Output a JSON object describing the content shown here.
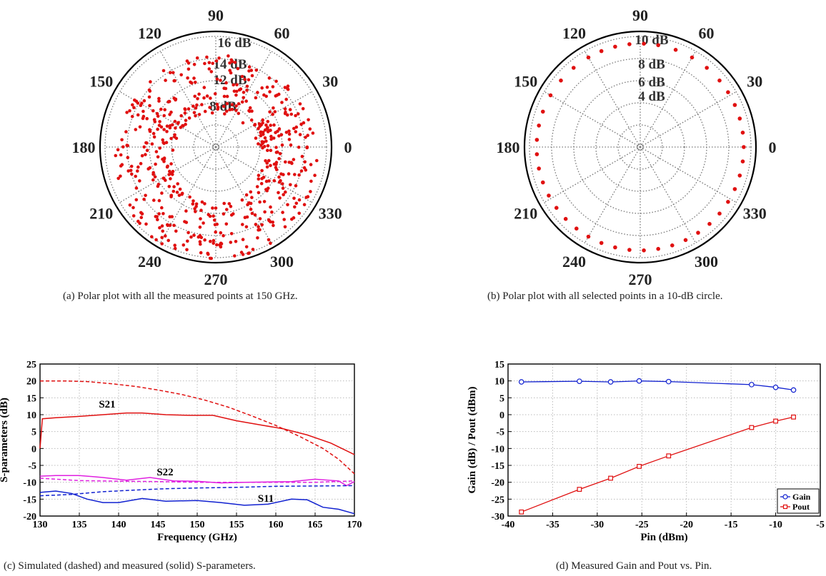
{
  "captions": {
    "a": "(a) Polar plot with all the measured points at 150 GHz.",
    "b": "(b) Polar plot with all selected points in a 10-dB circle.",
    "c": "(c) Simulated (dashed) and measured (solid) S-parameters.",
    "d": "(d) Measured Gain and Pout vs. Pin."
  },
  "colors": {
    "points": "#e01010",
    "s21": "#e01010",
    "s22": "#e020e0",
    "s11": "#1020d0",
    "gain": "#1020d0",
    "pout": "#e01010"
  },
  "chart_data": [
    {
      "type": "scatter",
      "coordinate_system": "polar",
      "angle_labels": [
        "0",
        "30",
        "60",
        "90",
        "120",
        "150",
        "180",
        "210",
        "240",
        "270",
        "300",
        "330"
      ],
      "ring_labels": [
        "8 dB",
        "12 dB",
        "14 dB",
        "16 dB"
      ],
      "r_range": [
        0,
        18
      ],
      "grid": true,
      "rings_r": [
        6,
        10,
        13,
        16
      ],
      "ring_label_values": [
        8,
        12,
        14,
        16
      ],
      "points_note": "many measured points distributed between radius ~6 and ~17"
    },
    {
      "type": "scatter",
      "coordinate_system": "polar",
      "angle_labels": [
        "0",
        "30",
        "60",
        "90",
        "120",
        "150",
        "180",
        "210",
        "240",
        "270",
        "300",
        "330"
      ],
      "ring_labels": [
        "10 dB",
        "8 dB",
        "6 dB",
        "4 dB"
      ],
      "r_range": [
        0,
        10
      ],
      "grid": true,
      "ring_label_values": [
        10,
        8,
        6,
        4
      ],
      "points_r": 10,
      "points_angles": [
        0,
        8,
        16,
        24,
        32,
        40,
        50,
        60,
        70,
        80,
        88,
        96,
        104,
        112,
        120,
        130,
        140,
        150,
        160,
        168,
        176,
        184,
        192,
        200,
        208,
        216,
        224,
        232,
        240,
        248,
        256,
        264,
        272,
        280,
        288,
        296,
        304,
        312,
        320,
        328,
        336,
        344,
        352
      ]
    },
    {
      "type": "line",
      "xlabel": "Frequency (GHz)",
      "ylabel": "S-parameters (dB)",
      "xlim": [
        130,
        170
      ],
      "ylim": [
        -20,
        25
      ],
      "xticks": [
        "130",
        "135",
        "140",
        "145",
        "150",
        "155",
        "160",
        "165",
        "170"
      ],
      "yticks": [
        "-20",
        "-15",
        "-10",
        "-5",
        "0",
        "5",
        "10",
        "15",
        "20",
        "25"
      ],
      "grid": true,
      "annotations": [
        "S21",
        "S22",
        "S11"
      ],
      "series": [
        {
          "name": "S21",
          "style": "solid",
          "x": [
            130,
            130.3,
            132,
            135,
            138,
            141,
            143,
            146,
            149,
            152,
            155,
            158,
            161,
            164,
            167,
            170
          ],
          "values": [
            0,
            8.8,
            9.1,
            9.5,
            10,
            10.5,
            10.5,
            10,
            9.8,
            9.8,
            8.2,
            7,
            5.8,
            4,
            1.6,
            -1.8
          ]
        },
        {
          "name": "S21",
          "style": "dashed",
          "x": [
            130,
            133,
            136,
            139,
            142,
            145,
            148,
            151,
            154,
            157,
            160,
            163,
            166,
            168,
            170
          ],
          "values": [
            20,
            20,
            19.8,
            19.2,
            18.4,
            17.3,
            16,
            14.3,
            12.2,
            9.6,
            6.8,
            3.6,
            0,
            -3.2,
            -7.5
          ]
        },
        {
          "name": "S22",
          "style": "solid",
          "x": [
            130,
            132,
            135,
            138,
            141,
            144,
            147,
            150,
            153,
            156,
            159,
            162,
            165,
            168,
            169,
            170
          ],
          "values": [
            -8.2,
            -8,
            -8,
            -8.6,
            -9.4,
            -8.6,
            -9.6,
            -9.7,
            -10.2,
            -10,
            -9.9,
            -9.8,
            -9.1,
            -9.6,
            -11,
            -9.8
          ]
        },
        {
          "name": "S22",
          "style": "dashed",
          "x": [
            130,
            135,
            140,
            145,
            150,
            155,
            160,
            165,
            170
          ],
          "values": [
            -8.8,
            -9.5,
            -9.7,
            -9.8,
            -10,
            -10,
            -10,
            -10,
            -9.6
          ]
        },
        {
          "name": "S11",
          "style": "solid",
          "x": [
            130,
            132,
            134,
            136,
            138,
            140,
            143,
            146,
            150,
            153,
            156,
            159,
            162,
            164,
            166,
            168,
            170
          ],
          "values": [
            -13,
            -12.6,
            -13.3,
            -15,
            -16,
            -16,
            -14.8,
            -15.6,
            -15.4,
            -16,
            -16.8,
            -16.5,
            -15,
            -15.2,
            -17.4,
            -18,
            -19.3
          ]
        },
        {
          "name": "S11",
          "style": "dashed",
          "x": [
            130,
            134,
            138,
            142,
            146,
            150,
            155,
            160,
            165,
            170
          ],
          "values": [
            -14,
            -13.6,
            -12.8,
            -12.3,
            -11.9,
            -11.7,
            -11.5,
            -11.2,
            -11.1,
            -11
          ]
        }
      ]
    },
    {
      "type": "line",
      "xlabel": "Pin (dBm)",
      "ylabel": "Gain (dB) / Pout (dBm)",
      "xlim": [
        -40,
        -5
      ],
      "ylim": [
        -30,
        15
      ],
      "xticks": [
        "-40",
        "-35",
        "-30",
        "-25",
        "-20",
        "-15",
        "-10",
        "-5"
      ],
      "yticks": [
        "-30",
        "-25",
        "-20",
        "-15",
        "-10",
        "-5",
        "0",
        "5",
        "10",
        "15"
      ],
      "grid": true,
      "legend": "bottom-right",
      "series": [
        {
          "name": "Gain",
          "marker": "circle",
          "x": [
            -38.5,
            -32,
            -28.5,
            -25.3,
            -22,
            -12.7,
            -10,
            -8
          ],
          "values": [
            9.7,
            9.9,
            9.7,
            10,
            9.8,
            8.9,
            8.1,
            7.3
          ]
        },
        {
          "name": "Pout",
          "marker": "square",
          "x": [
            -38.5,
            -32,
            -28.5,
            -25.3,
            -22,
            -12.7,
            -10,
            -8
          ],
          "values": [
            -28.8,
            -22.1,
            -18.8,
            -15.3,
            -12.2,
            -3.8,
            -1.9,
            -0.7
          ]
        }
      ]
    }
  ]
}
